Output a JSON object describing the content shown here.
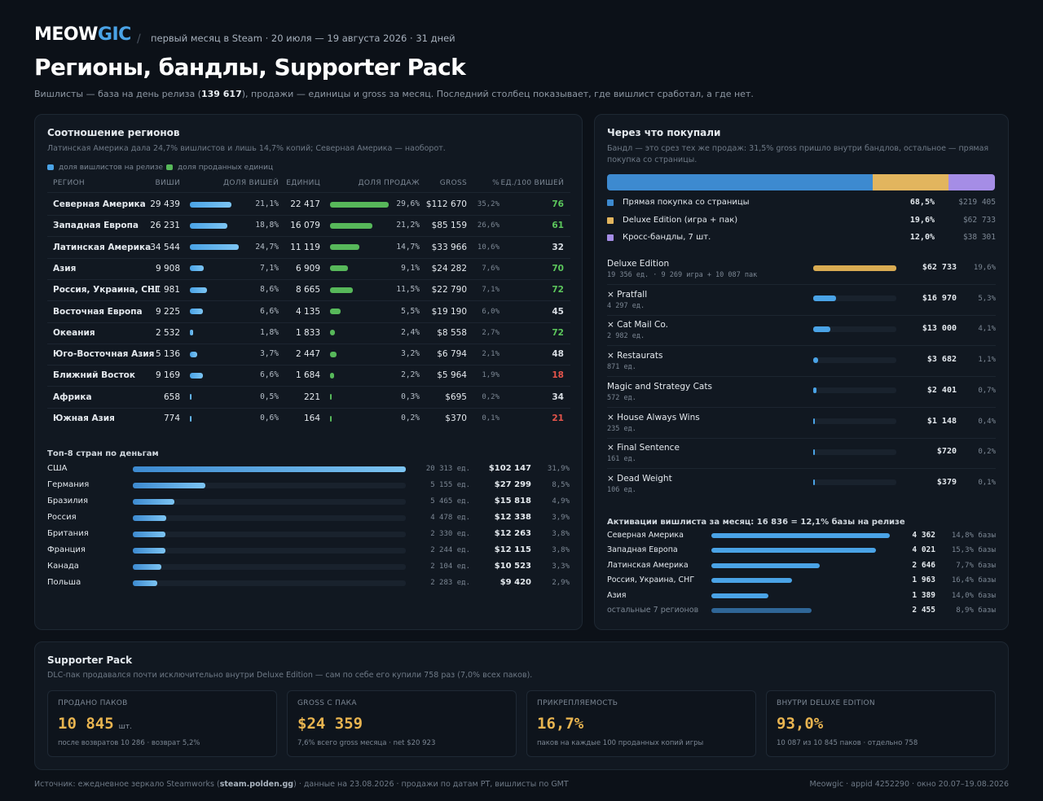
{
  "header": {
    "brand_a": "MEOW",
    "brand_b": "GIC",
    "subtitle": "первый месяц в Steam · 20 июля — 19 августа 2026 · 31 дней",
    "title": "Регионы, бандлы, Supporter Pack",
    "desc_before": "Вишлисты — база на день релиза (",
    "desc_bold": "139 617",
    "desc_after": "), продажи — единицы и gross за месяц. Последний столбец показывает, где вишлист сработал, а где нет."
  },
  "regions": {
    "title": "Соотношение регионов",
    "subtitle": "Латинская Америка дала 24,7% вишлистов и лишь 14,7% копий; Северная Америка — наоборот.",
    "legend": [
      {
        "label": "доля вишлистов на релизе",
        "color": "#4aa3e6"
      },
      {
        "label": "доля проданных единиц",
        "color": "#57b85a"
      }
    ],
    "columns": [
      "РЕГИОН",
      "ВИШИ",
      "ДОЛЯ ВИШЕЙ",
      "ЕДИНИЦ",
      "ДОЛЯ ПРОДАЖ",
      "GROSS",
      "%",
      "ЕД./100 ВИШЕЙ"
    ],
    "rows": [
      {
        "name": "Северная Америка",
        "wishes": "29 439",
        "wish_share": {
          "value": 21.1,
          "label": "21,1%"
        },
        "units": "22 417",
        "sales_share": {
          "value": 29.6,
          "label": "29,6%"
        },
        "gross": "$112 670",
        "gross_pct": "35,2%",
        "per100": "76",
        "per100_color": "#5cc75c"
      },
      {
        "name": "Западная Европа",
        "wishes": "26 231",
        "wish_share": {
          "value": 18.8,
          "label": "18,8%"
        },
        "units": "16 079",
        "sales_share": {
          "value": 21.2,
          "label": "21,2%"
        },
        "gross": "$85 159",
        "gross_pct": "26,6%",
        "per100": "61",
        "per100_color": "#5cc75c"
      },
      {
        "name": "Латинская Америка",
        "wishes": "34 544",
        "wish_share": {
          "value": 24.7,
          "label": "24,7%"
        },
        "units": "11 119",
        "sales_share": {
          "value": 14.7,
          "label": "14,7%"
        },
        "gross": "$33 966",
        "gross_pct": "10,6%",
        "per100": "32",
        "per100_color": "#d8dde3"
      },
      {
        "name": "Азия",
        "wishes": "9 908",
        "wish_share": {
          "value": 7.1,
          "label": "7,1%"
        },
        "units": "6 909",
        "sales_share": {
          "value": 9.1,
          "label": "9,1%"
        },
        "gross": "$24 282",
        "gross_pct": "7,6%",
        "per100": "70",
        "per100_color": "#5cc75c"
      },
      {
        "name": "Россия, Украина, СНГ",
        "wishes": "11 981",
        "wish_share": {
          "value": 8.6,
          "label": "8,6%"
        },
        "units": "8 665",
        "sales_share": {
          "value": 11.5,
          "label": "11,5%"
        },
        "gross": "$22 790",
        "gross_pct": "7,1%",
        "per100": "72",
        "per100_color": "#5cc75c"
      },
      {
        "name": "Восточная Европа",
        "wishes": "9 225",
        "wish_share": {
          "value": 6.6,
          "label": "6,6%"
        },
        "units": "4 135",
        "sales_share": {
          "value": 5.5,
          "label": "5,5%"
        },
        "gross": "$19 190",
        "gross_pct": "6,0%",
        "per100": "45",
        "per100_color": "#d8dde3"
      },
      {
        "name": "Океания",
        "wishes": "2 532",
        "wish_share": {
          "value": 1.8,
          "label": "1,8%"
        },
        "units": "1 833",
        "sales_share": {
          "value": 2.4,
          "label": "2,4%"
        },
        "gross": "$8 558",
        "gross_pct": "2,7%",
        "per100": "72",
        "per100_color": "#5cc75c"
      },
      {
        "name": "Юго-Восточная Азия",
        "wishes": "5 136",
        "wish_share": {
          "value": 3.7,
          "label": "3,7%"
        },
        "units": "2 447",
        "sales_share": {
          "value": 3.2,
          "label": "3,2%"
        },
        "gross": "$6 794",
        "gross_pct": "2,1%",
        "per100": "48",
        "per100_color": "#d8dde3"
      },
      {
        "name": "Ближний Восток",
        "wishes": "9 169",
        "wish_share": {
          "value": 6.6,
          "label": "6,6%"
        },
        "units": "1 684",
        "sales_share": {
          "value": 2.2,
          "label": "2,2%"
        },
        "gross": "$5 964",
        "gross_pct": "1,9%",
        "per100": "18",
        "per100_color": "#e5544b"
      },
      {
        "name": "Африка",
        "wishes": "658",
        "wish_share": {
          "value": 0.5,
          "label": "0,5%"
        },
        "units": "221",
        "sales_share": {
          "value": 0.3,
          "label": "0,3%"
        },
        "gross": "$695",
        "gross_pct": "0,2%",
        "per100": "34",
        "per100_color": "#d8dde3"
      },
      {
        "name": "Южная Азия",
        "wishes": "774",
        "wish_share": {
          "value": 0.6,
          "label": "0,6%"
        },
        "units": "164",
        "sales_share": {
          "value": 0.2,
          "label": "0,2%"
        },
        "gross": "$370",
        "gross_pct": "0,1%",
        "per100": "21",
        "per100_color": "#e5544b"
      }
    ]
  },
  "top_countries": {
    "title": "Топ-8 стран по деньгам",
    "rows": [
      {
        "name": "США",
        "units": "20 313 ед.",
        "gross": "$102 147",
        "share": {
          "value": 31.9,
          "label": "31,9%"
        }
      },
      {
        "name": "Германия",
        "units": "5 155 ед.",
        "gross": "$27 299",
        "share": {
          "value": 8.5,
          "label": "8,5%"
        }
      },
      {
        "name": "Бразилия",
        "units": "5 465 ед.",
        "gross": "$15 818",
        "share": {
          "value": 4.9,
          "label": "4,9%"
        }
      },
      {
        "name": "Россия",
        "units": "4 478 ед.",
        "gross": "$12 338",
        "share": {
          "value": 3.9,
          "label": "3,9%"
        }
      },
      {
        "name": "Британия",
        "units": "2 330 ед.",
        "gross": "$12 263",
        "share": {
          "value": 3.8,
          "label": "3,8%"
        }
      },
      {
        "name": "Франция",
        "units": "2 244 ед.",
        "gross": "$12 115",
        "share": {
          "value": 3.8,
          "label": "3,8%"
        }
      },
      {
        "name": "Канада",
        "units": "2 104 ед.",
        "gross": "$10 523",
        "share": {
          "value": 3.3,
          "label": "3,3%"
        }
      },
      {
        "name": "Польша",
        "units": "2 283 ед.",
        "gross": "$9 420",
        "share": {
          "value": 2.9,
          "label": "2,9%"
        }
      }
    ]
  },
  "channels": {
    "title": "Через что покупали",
    "subtitle": "Бандл — это срез тех же продаж: 31,5% gross пришло внутри бандлов, остальное — прямая покупка со страницы.",
    "segments": [
      {
        "name": "Прямая покупка со страницы",
        "share": {
          "value": 68.5,
          "label": "68,5%"
        },
        "gross": "$219 405",
        "color": "#3d8ad0"
      },
      {
        "name": "Deluxe Edition (игра + пак)",
        "share": {
          "value": 19.6,
          "label": "19,6%"
        },
        "gross": "$62 733",
        "color": "#e2b55e"
      },
      {
        "name": "Кросс-бандлы, 7 шт.",
        "share": {
          "value": 12.0,
          "label": "12,0%"
        },
        "gross": "$38 301",
        "color": "#a58de6"
      }
    ],
    "bundles": [
      {
        "name": "Deluxe Edition",
        "detail": "19 356 ед. · 9 269 игра + 10 087 пак",
        "gross": "$62 733",
        "share": {
          "value": 19.6,
          "label": "19,6%"
        },
        "color": "#d9ab52"
      },
      {
        "name": "× Pratfall",
        "detail": "4 297 ед.",
        "gross": "$16 970",
        "share": {
          "value": 5.3,
          "label": "5,3%"
        },
        "color": "#4aa3e6"
      },
      {
        "name": "× Cat Mail Co.",
        "detail": "2 982 ед.",
        "gross": "$13 000",
        "share": {
          "value": 4.1,
          "label": "4,1%"
        },
        "color": "#4aa3e6"
      },
      {
        "name": "× Restaurats",
        "detail": "871 ед.",
        "gross": "$3 682",
        "share": {
          "value": 1.1,
          "label": "1,1%"
        },
        "color": "#4aa3e6"
      },
      {
        "name": "Magic and Strategy Cats",
        "detail": "572 ед.",
        "gross": "$2 401",
        "share": {
          "value": 0.7,
          "label": "0,7%"
        },
        "color": "#4aa3e6"
      },
      {
        "name": "× House Always Wins",
        "detail": "235 ед.",
        "gross": "$1 148",
        "share": {
          "value": 0.4,
          "label": "0,4%"
        },
        "color": "#4aa3e6"
      },
      {
        "name": "× Final Sentence",
        "detail": "161 ед.",
        "gross": "$720",
        "share": {
          "value": 0.2,
          "label": "0,2%"
        },
        "color": "#4aa3e6"
      },
      {
        "name": "× Dead Weight",
        "detail": "106 ед.",
        "gross": "$379",
        "share": {
          "value": 0.1,
          "label": "0,1%"
        },
        "color": "#4aa3e6"
      }
    ],
    "activations": {
      "title": "Активации вишлиста за месяц: 16 836 = 12,1% базы на релизе",
      "rows": [
        {
          "name": "Северная Америка",
          "count": {
            "value": 4362,
            "label": "4 362"
          },
          "base_share": "14,8% базы",
          "color": "#4aa3e6"
        },
        {
          "name": "Западная Европа",
          "count": {
            "value": 4021,
            "label": "4 021"
          },
          "base_share": "15,3% базы",
          "color": "#4aa3e6"
        },
        {
          "name": "Латинская Америка",
          "count": {
            "value": 2646,
            "label": "2 646"
          },
          "base_share": "7,7% базы",
          "color": "#4aa3e6"
        },
        {
          "name": "Россия, Украина, СНГ",
          "count": {
            "value": 1963,
            "label": "1 963"
          },
          "base_share": "16,4% базы",
          "color": "#4aa3e6"
        },
        {
          "name": "Азия",
          "count": {
            "value": 1389,
            "label": "1 389"
          },
          "base_share": "14,0% базы",
          "color": "#4aa3e6"
        },
        {
          "name": "остальные 7 регионов",
          "count": {
            "value": 2455,
            "label": "2 455"
          },
          "base_share": "8,9% базы",
          "color": "#2f6697"
        }
      ]
    }
  },
  "supporter": {
    "title": "Supporter Pack",
    "subtitle": "DLC-пак продавался почти исключительно внутри Deluxe Edition — сам по себе его купили 758 раз (7,0% всех паков).",
    "cards": [
      {
        "label": "ПРОДАНО ПАКОВ",
        "value": "10 845",
        "unit": "шт.",
        "note": "после возвратов 10 286 · возврат 5,2%"
      },
      {
        "label": "GROSS С ПАКА",
        "value": "$24 359",
        "note": "7,6% всего gross месяца · net $20 923"
      },
      {
        "label": "ПРИКРЕПЛЯЕМОСТЬ",
        "value": "16,7%",
        "note": "паков на каждые 100 проданных копий игры"
      },
      {
        "label": "ВНУТРИ DELUXE EDITION",
        "value": "93,0%",
        "note": "10 087 из 10 845 паков · отдельно 758"
      }
    ]
  },
  "footer": {
    "left_before": "Источник: ежедневное зеркало Steamworks (",
    "left_bold": "steam.polden.gg",
    "left_after": ") · данные на 23.08.2026 · продажи по датам PT, вишлисты по GMT",
    "right": "Meowgic · appid 4252290 · окно 20.07–19.08.2026"
  }
}
